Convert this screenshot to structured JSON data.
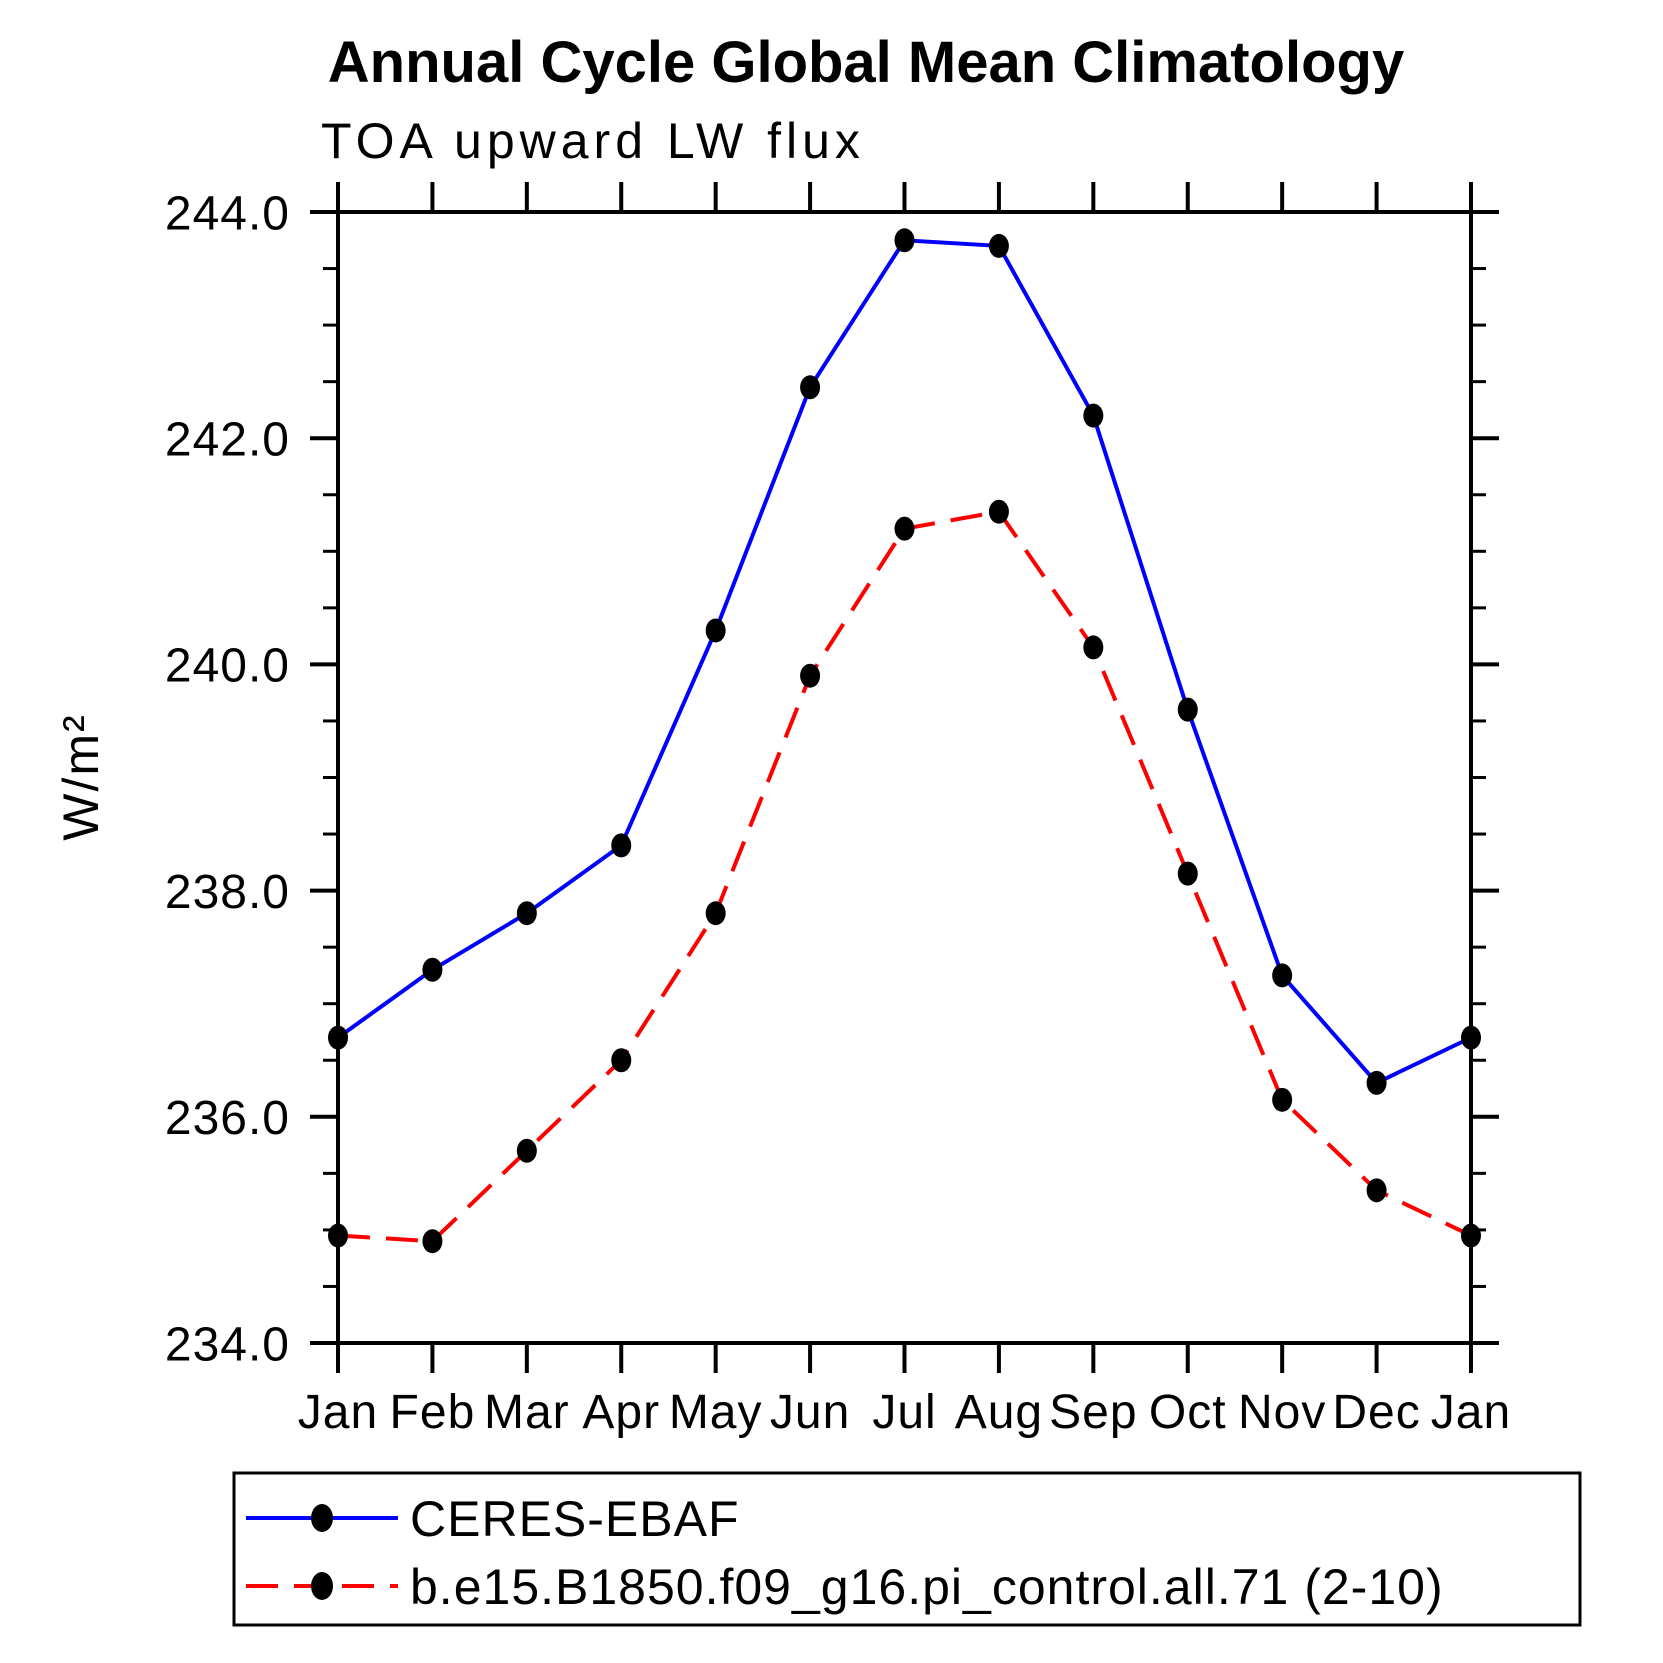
{
  "title": "Annual Cycle Global Mean Climatology",
  "chart_data": {
    "type": "line",
    "title": "Annual Cycle Global Mean Climatology",
    "subtitle": "TOA upward LW flux",
    "ylabel": "W/m²",
    "xlabel": "",
    "grid": false,
    "legend_position": "bottom",
    "x_categories": [
      "Jan",
      "Feb",
      "Mar",
      "Apr",
      "May",
      "Jun",
      "Jul",
      "Aug",
      "Sep",
      "Oct",
      "Nov",
      "Dec",
      "Jan"
    ],
    "ylim": [
      234.0,
      244.0
    ],
    "y_major_ticks": [
      234.0,
      236.0,
      238.0,
      240.0,
      242.0,
      244.0
    ],
    "y_tick_labels": [
      "234.0",
      "236.0",
      "238.0",
      "240.0",
      "242.0",
      "244.0"
    ],
    "y_minor_step": 0.5,
    "axis_color": "#000000",
    "marker_color": "#000000",
    "series": [
      {
        "name": "CERES-EBAF",
        "color": "#0000ff",
        "style": "solid",
        "marker": "filled-circle",
        "values": [
          236.7,
          237.3,
          237.8,
          238.4,
          240.3,
          242.45,
          243.75,
          243.7,
          242.2,
          239.6,
          237.25,
          236.3,
          236.7
        ]
      },
      {
        "name": "b.e15.B1850.f09_g16.pi_control.all.71 (2-10)",
        "color": "#ff0000",
        "style": "dashed",
        "marker": "filled-circle",
        "values": [
          234.95,
          234.9,
          235.7,
          236.5,
          237.8,
          239.9,
          241.2,
          241.35,
          240.15,
          238.15,
          236.15,
          235.35,
          234.95
        ]
      }
    ]
  }
}
